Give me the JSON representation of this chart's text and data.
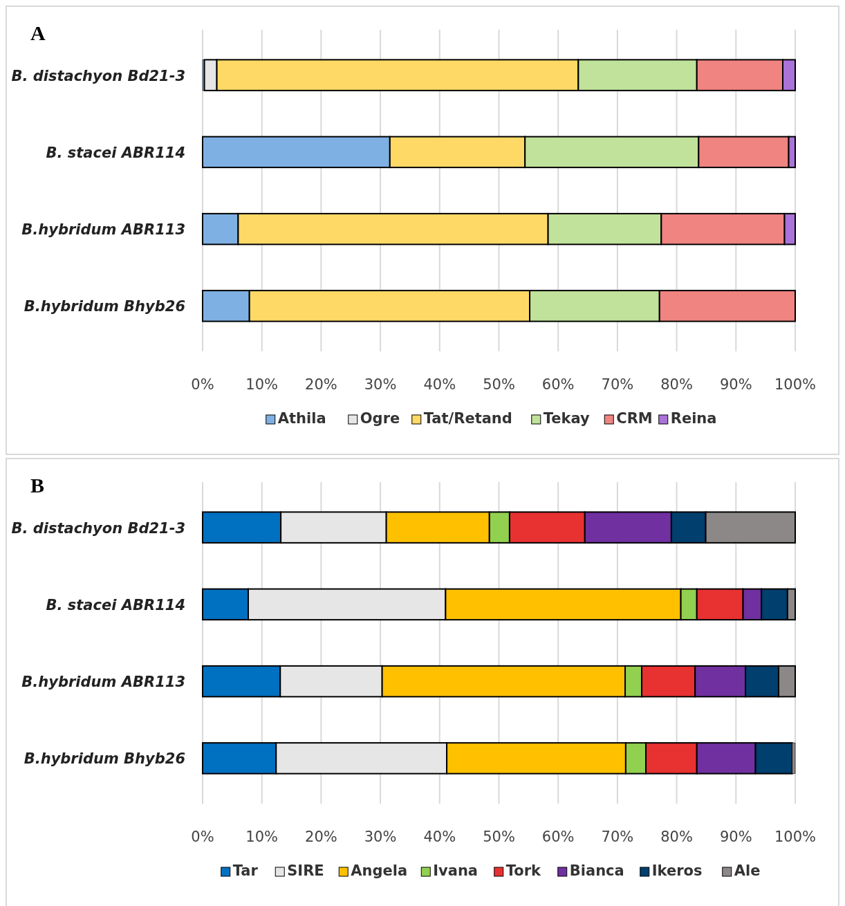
{
  "chart_data": [
    {
      "type": "bar",
      "title": "A",
      "orientation": "horizontal",
      "stacked": true,
      "categories": [
        "B. distachyon Bd21-3",
        "B. stacei ABR114",
        "B.hybridum ABR113",
        "B.hybridum Bhyb26"
      ],
      "series": [
        {
          "name": "Athila",
          "color": "#7fb0e3",
          "values": [
            0.3,
            31.6,
            6.0,
            7.9
          ]
        },
        {
          "name": "Ogre",
          "color": "#e6e6e6",
          "values": [
            2.1,
            0,
            0,
            0
          ]
        },
        {
          "name": "Tat/Retand",
          "color": "#ffd966",
          "values": [
            61.0,
            22.8,
            52.3,
            47.3
          ]
        },
        {
          "name": "Tekay",
          "color": "#c0e29a",
          "values": [
            20.0,
            29.3,
            19.1,
            21.9
          ]
        },
        {
          "name": "CRM",
          "color": "#f08480",
          "values": [
            14.5,
            15.2,
            20.8,
            22.9
          ]
        },
        {
          "name": "Reina",
          "color": "#aa73d9",
          "values": [
            2.1,
            1.1,
            1.8,
            0
          ]
        }
      ],
      "xlim": [
        0,
        100
      ],
      "xticks": [
        {
          "value": 0,
          "label": "0%"
        },
        {
          "value": 10,
          "label": "10%"
        },
        {
          "value": 20,
          "label": "20%"
        },
        {
          "value": 30,
          "label": "30%"
        },
        {
          "value": 40,
          "label": "40%"
        },
        {
          "value": 50,
          "label": "50%"
        },
        {
          "value": 60,
          "label": "60%"
        },
        {
          "value": 70,
          "label": "70%"
        },
        {
          "value": 80,
          "label": "80%"
        },
        {
          "value": 90,
          "label": "90%"
        },
        {
          "value": 100,
          "label": "100%"
        }
      ],
      "grid": "x",
      "legend": "bottom"
    },
    {
      "type": "bar",
      "title": "B",
      "orientation": "horizontal",
      "stacked": true,
      "categories": [
        "B. distachyon Bd21-3",
        "B. stacei ABR114",
        "B.hybridum ABR113",
        "B.hybridum Bhyb26"
      ],
      "series": [
        {
          "name": "Tar",
          "color": "#0070c0",
          "values": [
            13.2,
            7.7,
            13.1,
            12.4
          ]
        },
        {
          "name": "SIRE",
          "color": "#e6e6e6",
          "values": [
            17.8,
            33.3,
            17.2,
            28.8
          ]
        },
        {
          "name": "Angela",
          "color": "#ffc000",
          "values": [
            17.4,
            39.7,
            41.0,
            30.2
          ]
        },
        {
          "name": "Ivana",
          "color": "#92d050",
          "values": [
            3.4,
            2.7,
            2.8,
            3.4
          ]
        },
        {
          "name": "Tork",
          "color": "#e83131",
          "values": [
            12.7,
            7.8,
            9.0,
            8.6
          ]
        },
        {
          "name": "Bianca",
          "color": "#7030a0",
          "values": [
            14.6,
            3.1,
            8.5,
            9.9
          ]
        },
        {
          "name": "Ikeros",
          "color": "#003f6e",
          "values": [
            5.8,
            4.4,
            5.6,
            6.2
          ]
        },
        {
          "name": "Ale",
          "color": "#8c8888",
          "values": [
            15.1,
            1.3,
            2.8,
            0.5
          ]
        }
      ],
      "xlim": [
        0,
        100
      ],
      "xticks": [
        {
          "value": 0,
          "label": "0%"
        },
        {
          "value": 10,
          "label": "10%"
        },
        {
          "value": 20,
          "label": "20%"
        },
        {
          "value": 30,
          "label": "30%"
        },
        {
          "value": 40,
          "label": "40%"
        },
        {
          "value": 50,
          "label": "50%"
        },
        {
          "value": 60,
          "label": "60%"
        },
        {
          "value": 70,
          "label": "70%"
        },
        {
          "value": 80,
          "label": "80%"
        },
        {
          "value": 90,
          "label": "90%"
        },
        {
          "value": 100,
          "label": "100%"
        }
      ],
      "grid": "x",
      "legend": "bottom"
    }
  ]
}
